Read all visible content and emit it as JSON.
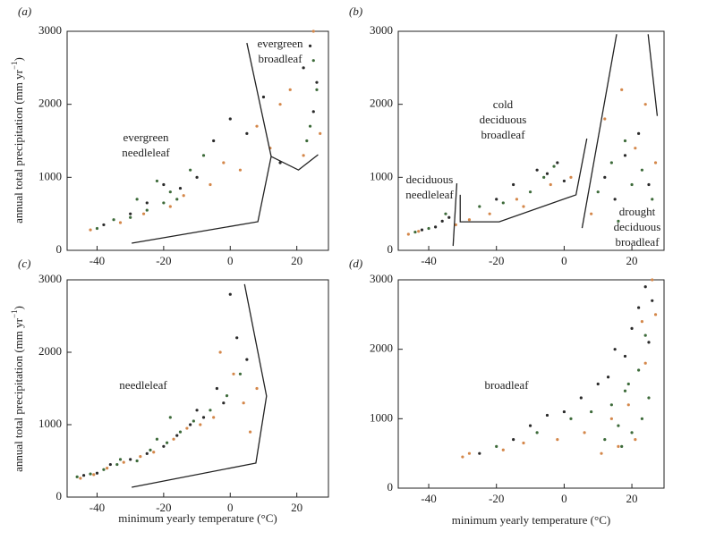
{
  "chart_data": [
    {
      "type": "scatter",
      "panel_label": "(a)",
      "xlim": [
        -49,
        29.5
      ],
      "ylim": [
        0,
        3000
      ],
      "xticks": [
        -40,
        -20,
        0,
        20
      ],
      "yticks": [
        0,
        1000,
        2000,
        3000
      ],
      "ylabel": [
        "annual total precipitation (mm yr",
        "−1",
        ")"
      ],
      "annotations": [
        [
          "evergreen",
          "needleleaf"
        ],
        [
          "evergreen",
          "broadleaf"
        ]
      ],
      "series": [
        {
          "color": "#2a2a2a",
          "x": [
            -38,
            -30,
            -25,
            -20,
            -15,
            -10,
            -5,
            0,
            5,
            10,
            15,
            22,
            24,
            25,
            26
          ],
          "y": [
            350,
            500,
            650,
            900,
            850,
            1000,
            1500,
            1800,
            1600,
            2100,
            1200,
            2500,
            2800,
            1900,
            2300
          ]
        },
        {
          "color": "#3d6b3a",
          "x": [
            -40,
            -35,
            -28,
            -22,
            -18,
            -20,
            -12,
            -8,
            23,
            25,
            26,
            24,
            -25,
            -30,
            -16
          ],
          "y": [
            300,
            420,
            700,
            950,
            800,
            650,
            1100,
            1300,
            1500,
            2600,
            2200,
            1700,
            550,
            450,
            700
          ]
        },
        {
          "color": "#d4874a",
          "x": [
            -42,
            -33,
            -26,
            -18,
            -14,
            -6,
            -2,
            3,
            8,
            12,
            15,
            18,
            22,
            25,
            27
          ],
          "y": [
            280,
            380,
            500,
            600,
            750,
            900,
            1200,
            1100,
            1700,
            1400,
            2000,
            2200,
            1300,
            3000,
            1600
          ]
        }
      ],
      "boundaries": [
        {
          "x": [
            5,
            12.3,
            8.3,
            -29.6
          ],
          "y": [
            2840,
            1285,
            392,
            98
          ]
        },
        {
          "x": [
            12.3,
            20.5,
            26.4
          ],
          "y": [
            1285,
            1100,
            1310
          ]
        }
      ]
    },
    {
      "type": "scatter",
      "panel_label": "(b)",
      "xlim": [
        -49,
        29.5
      ],
      "ylim": [
        0,
        3000
      ],
      "xticks": [
        -40,
        -20,
        0,
        20
      ],
      "yticks": [
        0,
        1000,
        2000,
        3000
      ],
      "annotations": [
        [
          "cold",
          "deciduous",
          "broadleaf"
        ],
        [
          "deciduous",
          "needleleaf"
        ],
        [
          "drought",
          "deciduous",
          "broadleaf"
        ]
      ],
      "series": [
        {
          "color": "#2a2a2a",
          "x": [
            -42,
            -38,
            -36,
            -34,
            -20,
            -15,
            -8,
            -5,
            -2,
            0,
            12,
            18,
            22,
            25,
            15
          ],
          "y": [
            280,
            320,
            400,
            450,
            700,
            900,
            1100,
            1050,
            1200,
            950,
            1000,
            1300,
            1600,
            900,
            700
          ]
        },
        {
          "color": "#3d6b3a",
          "x": [
            -44,
            -40,
            -35,
            -25,
            -18,
            -10,
            -6,
            -3,
            10,
            14,
            18,
            20,
            23,
            26,
            16
          ],
          "y": [
            250,
            300,
            500,
            600,
            650,
            800,
            1000,
            1150,
            800,
            1200,
            1500,
            900,
            1100,
            700,
            400
          ]
        },
        {
          "color": "#d4874a",
          "x": [
            -46,
            -43,
            -32,
            -28,
            -22,
            -14,
            -12,
            -4,
            2,
            8,
            12,
            17,
            21,
            24,
            27
          ],
          "y": [
            220,
            260,
            350,
            420,
            500,
            700,
            600,
            900,
            1000,
            500,
            1800,
            2200,
            1400,
            2000,
            1200
          ]
        }
      ],
      "boundaries": [
        {
          "x": [
            -31.7,
            -32.8
          ],
          "y": [
            918,
            60
          ]
        },
        {
          "x": [
            -30.7,
            -30.7,
            -19.2,
            3.5,
            6.7
          ],
          "y": [
            760,
            390,
            390,
            760,
            1530
          ]
        },
        {
          "x": [
            5.3,
            15.5
          ],
          "y": [
            305,
            2960
          ]
        },
        {
          "x": [
            24.8,
            27.5
          ],
          "y": [
            2960,
            1840
          ]
        }
      ]
    },
    {
      "type": "scatter",
      "panel_label": "(c)",
      "xlim": [
        -49,
        29.5
      ],
      "ylim": [
        0,
        3000
      ],
      "xticks": [
        -40,
        -20,
        0,
        20
      ],
      "yticks": [
        0,
        1000,
        2000,
        3000
      ],
      "ylabel": [
        "annual total precipitation (mm yr",
        "−1",
        ")"
      ],
      "xlabel": "minimum yearly temperature (°C)",
      "annotations": [
        [
          "needleleaf"
        ]
      ],
      "series": [
        {
          "color": "#2a2a2a",
          "x": [
            -44,
            -40,
            -36,
            -30,
            -25,
            -20,
            -16,
            -12,
            -8,
            -4,
            0,
            2,
            -2,
            5,
            -10
          ],
          "y": [
            300,
            330,
            450,
            520,
            600,
            700,
            850,
            1000,
            1100,
            1500,
            2800,
            2200,
            1300,
            1900,
            1200
          ]
        },
        {
          "color": "#3d6b3a",
          "x": [
            -46,
            -42,
            -38,
            -34,
            -28,
            -24,
            -19,
            -15,
            -11,
            -6,
            -1,
            3,
            -22,
            -33,
            -18
          ],
          "y": [
            280,
            320,
            380,
            450,
            500,
            650,
            750,
            900,
            1050,
            1200,
            1400,
            1700,
            800,
            520,
            1100
          ]
        },
        {
          "color": "#d4874a",
          "x": [
            -45,
            -41,
            -37,
            -32,
            -27,
            -23,
            -17,
            -13,
            -9,
            -5,
            1,
            4,
            8,
            6,
            -3
          ],
          "y": [
            260,
            310,
            400,
            480,
            560,
            620,
            800,
            950,
            1000,
            1100,
            1700,
            1300,
            1500,
            900,
            2000
          ]
        }
      ],
      "boundaries": [
        {
          "x": [
            4.3,
            10.9,
            7.7,
            -29.6
          ],
          "y": [
            2940,
            1395,
            469,
            136
          ]
        }
      ]
    },
    {
      "type": "scatter",
      "panel_label": "(d)",
      "xlim": [
        -49,
        29.5
      ],
      "ylim": [
        0,
        3000
      ],
      "xticks": [
        -40,
        -20,
        0,
        20
      ],
      "yticks": [
        0,
        1000,
        2000,
        3000
      ],
      "xlabel": "minimum yearly temperature (°C)",
      "annotations": [
        [
          "broadleaf"
        ]
      ],
      "series": [
        {
          "color": "#2a2a2a",
          "x": [
            -25,
            -15,
            -10,
            -5,
            0,
            5,
            10,
            13,
            15,
            18,
            20,
            22,
            24,
            25,
            26
          ],
          "y": [
            500,
            700,
            900,
            1050,
            1100,
            1300,
            1500,
            1600,
            2000,
            1900,
            2300,
            2600,
            2900,
            2100,
            2700
          ]
        },
        {
          "color": "#3d6b3a",
          "x": [
            -20,
            -8,
            2,
            8,
            12,
            14,
            16,
            18,
            20,
            22,
            23,
            24,
            25,
            17,
            19
          ],
          "y": [
            600,
            800,
            1000,
            1100,
            700,
            1200,
            900,
            1400,
            800,
            1700,
            1000,
            2200,
            1300,
            600,
            1500
          ]
        },
        {
          "color": "#d4874a",
          "x": [
            -30,
            -28,
            -18,
            -12,
            -2,
            6,
            11,
            14,
            16,
            19,
            21,
            23,
            24,
            26,
            27
          ],
          "y": [
            450,
            500,
            550,
            650,
            700,
            800,
            500,
            1000,
            600,
            1200,
            700,
            2400,
            1800,
            3000,
            2500
          ]
        }
      ],
      "boundaries": []
    }
  ]
}
